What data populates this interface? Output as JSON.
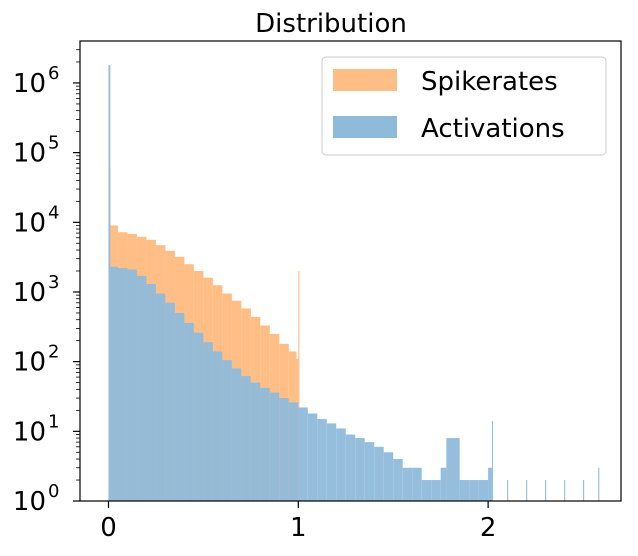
{
  "chart_data": {
    "type": "histogram",
    "title": "Distribution",
    "xlabel": "",
    "ylabel": "",
    "xlim": [
      -0.15,
      2.7
    ],
    "ylim": [
      1,
      4000000
    ],
    "y_scale": "log",
    "grid": false,
    "legend_position": "top-right",
    "x_ticks": [
      {
        "value": 0,
        "label": "0"
      },
      {
        "value": 1,
        "label": "1"
      },
      {
        "value": 2,
        "label": "2"
      }
    ],
    "y_ticks": [
      {
        "value": 1,
        "base": "10",
        "exp": "0"
      },
      {
        "value": 10,
        "base": "10",
        "exp": "1"
      },
      {
        "value": 100,
        "base": "10",
        "exp": "2"
      },
      {
        "value": 1000,
        "base": "10",
        "exp": "3"
      },
      {
        "value": 10000,
        "base": "10",
        "exp": "4"
      },
      {
        "value": 100000,
        "base": "10",
        "exp": "5"
      },
      {
        "value": 1000000,
        "base": "10",
        "exp": "6"
      }
    ],
    "series": [
      {
        "name": "Spikerates",
        "color": "#ffbe86",
        "points": [
          [
            0.0,
            60000
          ],
          [
            0.01,
            9000
          ],
          [
            0.05,
            7200
          ],
          [
            0.1,
            6800
          ],
          [
            0.15,
            6200
          ],
          [
            0.2,
            5600
          ],
          [
            0.25,
            4700
          ],
          [
            0.3,
            3900
          ],
          [
            0.35,
            3200
          ],
          [
            0.4,
            2500
          ],
          [
            0.45,
            2000
          ],
          [
            0.5,
            1600
          ],
          [
            0.55,
            1250
          ],
          [
            0.6,
            950
          ],
          [
            0.65,
            750
          ],
          [
            0.7,
            580
          ],
          [
            0.75,
            440
          ],
          [
            0.8,
            330
          ],
          [
            0.85,
            250
          ],
          [
            0.9,
            180
          ],
          [
            0.95,
            140
          ],
          [
            0.99,
            110
          ],
          [
            1.0,
            2000
          ]
        ]
      },
      {
        "name": "Activations",
        "color": "#8fbbdb",
        "points": [
          [
            0.0,
            1800000
          ],
          [
            0.01,
            2300
          ],
          [
            0.05,
            2200
          ],
          [
            0.1,
            2100
          ],
          [
            0.15,
            1700
          ],
          [
            0.2,
            1300
          ],
          [
            0.25,
            950
          ],
          [
            0.3,
            700
          ],
          [
            0.35,
            500
          ],
          [
            0.4,
            360
          ],
          [
            0.45,
            260
          ],
          [
            0.5,
            190
          ],
          [
            0.55,
            140
          ],
          [
            0.6,
            105
          ],
          [
            0.65,
            80
          ],
          [
            0.7,
            62
          ],
          [
            0.75,
            50
          ],
          [
            0.8,
            42
          ],
          [
            0.85,
            36
          ],
          [
            0.9,
            30
          ],
          [
            0.95,
            26
          ],
          [
            1.0,
            22
          ],
          [
            1.05,
            18
          ],
          [
            1.1,
            15
          ],
          [
            1.15,
            13
          ],
          [
            1.2,
            11
          ],
          [
            1.25,
            9
          ],
          [
            1.3,
            8
          ],
          [
            1.35,
            7
          ],
          [
            1.4,
            6
          ],
          [
            1.45,
            5
          ],
          [
            1.5,
            4
          ],
          [
            1.55,
            3
          ],
          [
            1.6,
            3
          ],
          [
            1.65,
            2
          ],
          [
            1.7,
            2
          ],
          [
            1.75,
            3
          ],
          [
            1.78,
            8
          ],
          [
            1.85,
            2
          ],
          [
            1.9,
            2
          ],
          [
            1.95,
            2
          ],
          [
            2.0,
            3
          ],
          [
            2.02,
            14
          ],
          [
            2.1,
            2
          ],
          [
            2.2,
            2
          ],
          [
            2.3,
            2
          ],
          [
            2.4,
            2
          ],
          [
            2.5,
            2
          ],
          [
            2.58,
            3
          ]
        ]
      }
    ]
  }
}
